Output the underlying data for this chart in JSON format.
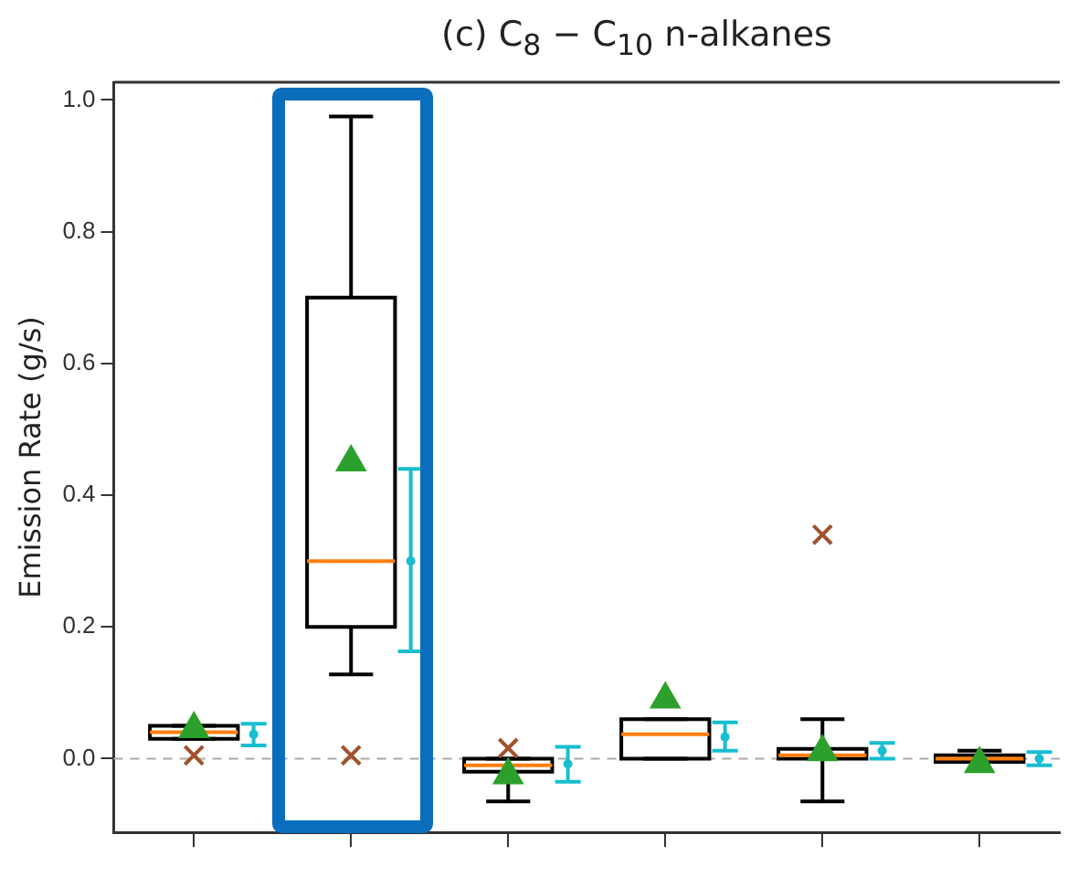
{
  "chart_data": {
    "type": "box",
    "title": "(c) C$_{8}$ − C$_{10}$ n-alkanes",
    "ylabel": "Emission Rate (g/s)",
    "color": "#000000",
    "categories": [
      null,
      null,
      null,
      null,
      null,
      null
    ],
    "boxes": [
      {
        "low": 0.03,
        "q1": 0.03,
        "median": 0.04,
        "q3": 0.05,
        "high": 0.05,
        "mean": 0.045
      },
      {
        "low": 0.128,
        "q1": 0.2,
        "median": 0.3,
        "q3": 0.7,
        "high": 0.975,
        "mean": 0.45
      },
      {
        "low": -0.065,
        "q1": -0.02,
        "median": -0.01,
        "q3": 0.0,
        "high": 0.0,
        "mean": -0.025
      },
      {
        "low": 0.0,
        "q1": 0.0,
        "median": 0.037,
        "q3": 0.06,
        "high": 0.06,
        "mean": 0.09
      },
      {
        "low": -0.065,
        "q1": 0.0,
        "median": 0.005,
        "q3": 0.015,
        "high": 0.06,
        "mean": 0.01
      },
      {
        "low": -0.005,
        "q1": -0.005,
        "median": 0.0,
        "q3": 0.005,
        "high": 0.012,
        "mean": -0.008
      }
    ],
    "series": [
      {
        "type": "scatter",
        "marker": "cross",
        "color": "#a0522d",
        "values": [
          0.005,
          0.005,
          0.016,
          null,
          0.34,
          null
        ]
      },
      {
        "type": "scatter",
        "marker": "circle",
        "color": "#17becf",
        "values": [
          0.037,
          0.3,
          -0.008,
          0.033,
          0.012,
          0.0
        ],
        "errors": [
          [
            0.02,
            0.053
          ],
          [
            0.163,
            0.44
          ],
          [
            -0.035,
            0.018
          ],
          [
            0.012,
            0.055
          ],
          [
            0.0,
            0.024
          ],
          [
            -0.01,
            0.01
          ]
        ]
      }
    ],
    "ylim": [
      -0.112,
      1.027
    ],
    "yticks": [
      {
        "value": 0,
        "label": "0.0"
      },
      {
        "value": 0.2,
        "label": "0.2"
      },
      {
        "value": 0.4,
        "label": "0.4"
      },
      {
        "value": 0.6,
        "label": "0.6"
      },
      {
        "value": 0.8,
        "label": "0.8"
      },
      {
        "value": 1,
        "label": "1.0"
      }
    ],
    "ref_lines": [
      {
        "axis": "y",
        "value": 0,
        "color": "#aaaaaa",
        "line_style": "dashed"
      }
    ],
    "tick_labels": "y",
    "grid": false,
    "legend": false
  }
}
